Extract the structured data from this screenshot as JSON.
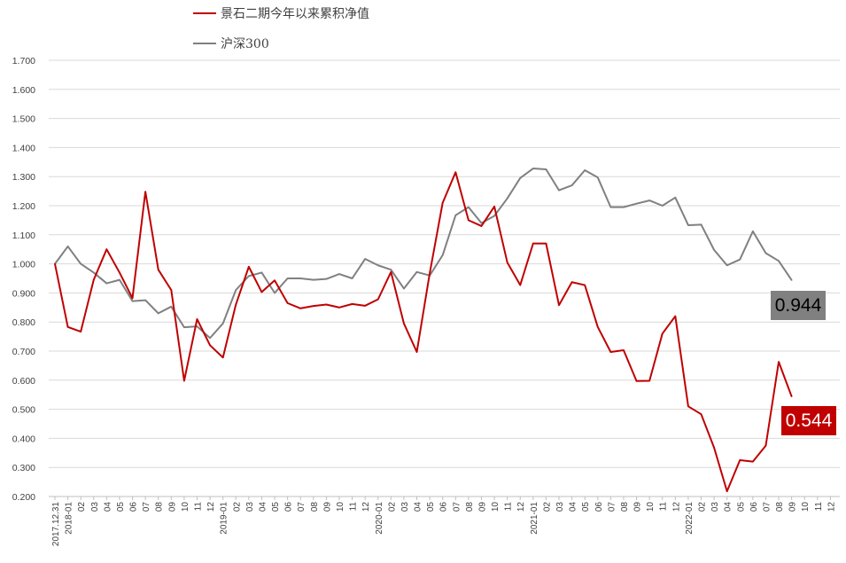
{
  "chart_data": {
    "type": "line",
    "colors": {
      "js": "#c00000",
      "hs": "#808080",
      "grid": "#d9d9d9",
      "axis": "#bfbfbf"
    },
    "ylim": [
      0.2,
      1.7
    ],
    "yticks": [
      "0.200",
      "0.300",
      "0.400",
      "0.500",
      "0.600",
      "0.700",
      "0.800",
      "0.900",
      "1.000",
      "1.100",
      "1.200",
      "1.300",
      "1.400",
      "1.500",
      "1.600",
      "1.700"
    ],
    "x_labels": [
      "2017.12.31",
      "2018-01",
      "02",
      "03",
      "04",
      "05",
      "06",
      "07",
      "08",
      "09",
      "10",
      "11",
      "12",
      "2019-01",
      "02",
      "03",
      "04",
      "05",
      "06",
      "07",
      "08",
      "09",
      "10",
      "11",
      "12",
      "2020-01",
      "02",
      "03",
      "04",
      "05",
      "06",
      "07",
      "08",
      "09",
      "10",
      "11",
      "12",
      "2021-01",
      "02",
      "03",
      "04",
      "05",
      "06",
      "07",
      "08",
      "09",
      "10",
      "11",
      "12",
      "2022-01",
      "02",
      "03",
      "04",
      "05",
      "06",
      "07",
      "08",
      "09",
      "10",
      "11",
      "12"
    ],
    "series": [
      {
        "name": "景石二期今年以来累积净值",
        "color": "#c00000",
        "values": [
          1.0,
          0.783,
          0.767,
          0.945,
          1.05,
          0.97,
          0.882,
          1.248,
          0.98,
          0.91,
          0.598,
          0.81,
          0.72,
          0.678,
          0.86,
          0.99,
          0.903,
          0.943,
          0.865,
          0.847,
          0.855,
          0.86,
          0.85,
          0.862,
          0.856,
          0.878,
          0.972,
          0.795,
          0.697,
          0.968,
          1.21,
          1.315,
          1.15,
          1.13,
          1.197,
          1.005,
          0.927,
          1.07,
          1.07,
          0.858,
          0.937,
          0.927,
          0.783,
          0.697,
          0.703,
          0.597,
          0.598,
          0.76,
          0.82,
          0.51,
          0.483,
          0.368,
          0.218,
          0.325,
          0.32,
          0.375,
          0.663,
          0.544
        ]
      },
      {
        "name": "沪深300",
        "color": "#808080",
        "values": [
          1.0,
          1.06,
          1.0,
          0.97,
          0.933,
          0.945,
          0.872,
          0.875,
          0.83,
          0.853,
          0.782,
          0.785,
          0.745,
          0.795,
          0.91,
          0.958,
          0.97,
          0.9,
          0.95,
          0.95,
          0.945,
          0.948,
          0.965,
          0.95,
          1.017,
          0.995,
          0.98,
          0.915,
          0.972,
          0.96,
          1.03,
          1.167,
          1.195,
          1.14,
          1.165,
          1.225,
          1.295,
          1.328,
          1.325,
          1.253,
          1.27,
          1.322,
          1.297,
          1.195,
          1.195,
          1.207,
          1.218,
          1.2,
          1.228,
          1.133,
          1.135,
          1.048,
          0.995,
          1.015,
          1.112,
          1.037,
          1.01,
          0.944
        ]
      }
    ],
    "callouts": {
      "hs_value": "0.944",
      "js_value": "0.544"
    }
  }
}
